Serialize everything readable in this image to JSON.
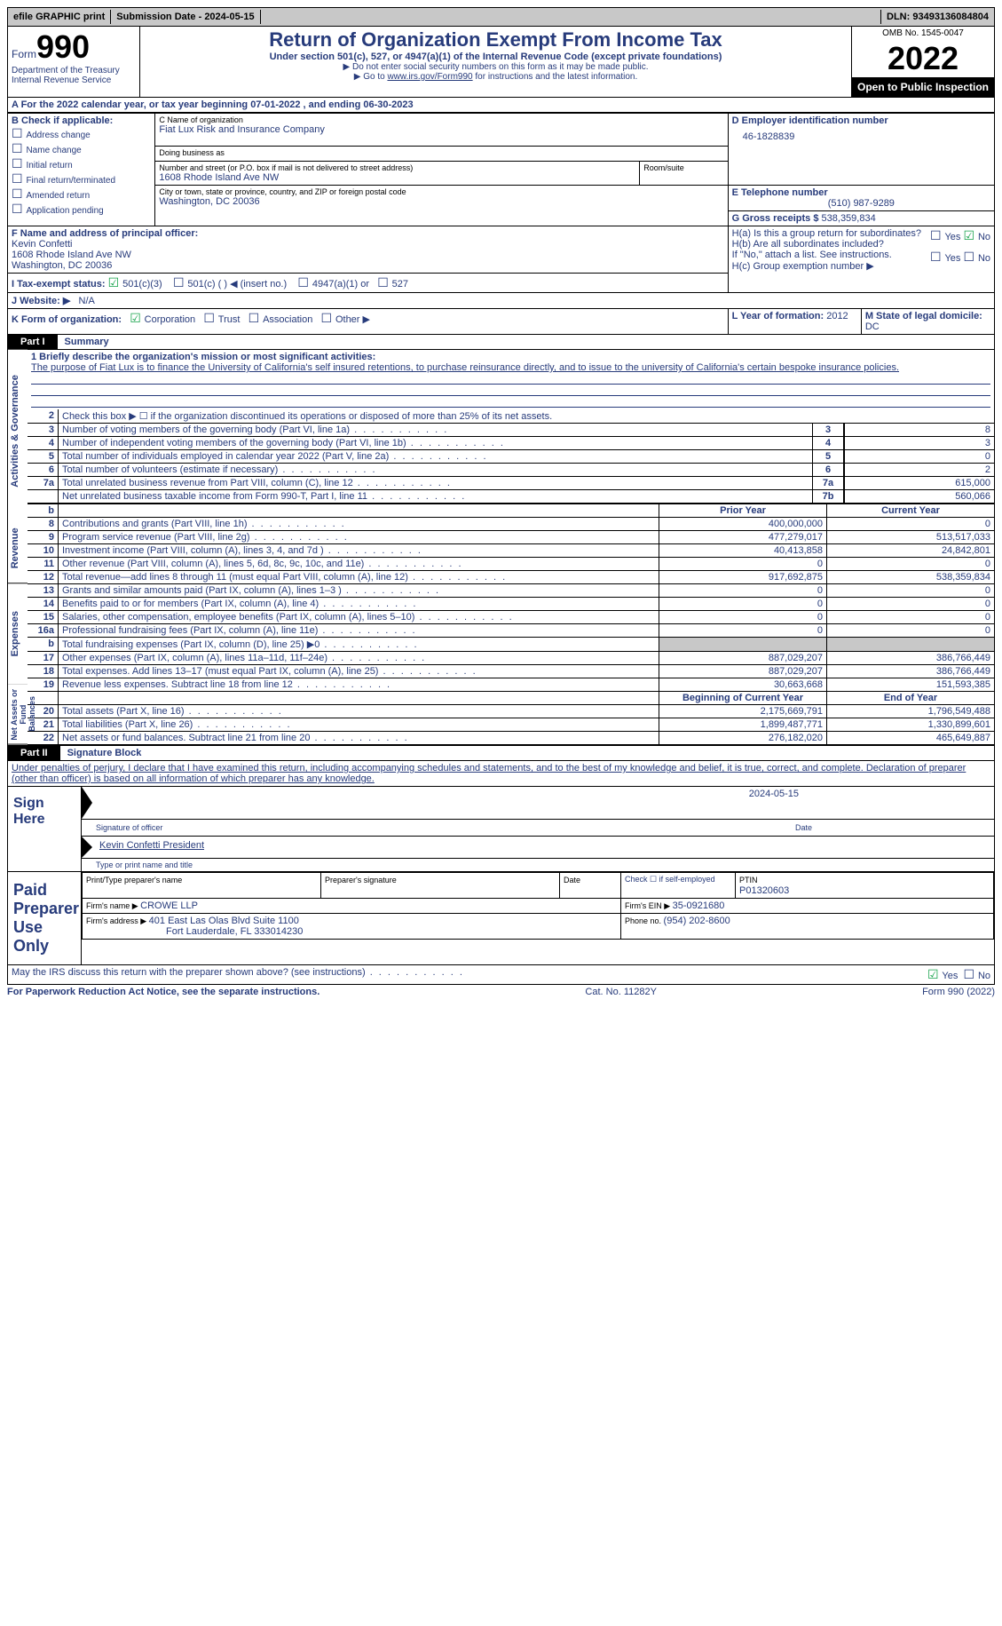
{
  "topbar": {
    "efile": "efile GRAPHIC print",
    "submission": "Submission Date - 2024-05-15",
    "dln": "DLN: 93493136084804"
  },
  "header": {
    "form_label": "Form",
    "form_number": "990",
    "title": "Return of Organization Exempt From Income Tax",
    "subtitle": "Under section 501(c), 527, or 4947(a)(1) of the Internal Revenue Code (except private foundations)",
    "note1": "▶ Do not enter social security numbers on this form as it may be made public.",
    "note2_prefix": "▶ Go to ",
    "note2_link": "www.irs.gov/Form990",
    "note2_suffix": " for instructions and the latest information.",
    "dept": "Department of the Treasury\nInternal Revenue Service",
    "omb": "OMB No. 1545-0047",
    "year": "2022",
    "inspection": "Open to Public Inspection"
  },
  "sectionA": {
    "line": "A For the 2022 calendar year, or tax year beginning 07-01-2022    , and ending 06-30-2023"
  },
  "sectionB": {
    "title": "B Check if applicable:",
    "items": [
      "Address change",
      "Name change",
      "Initial return",
      "Final return/terminated",
      "Amended return",
      "Application pending"
    ]
  },
  "sectionC": {
    "label_name": "C Name of organization",
    "org_name": "Fiat Lux Risk and Insurance Company",
    "dba_label": "Doing business as",
    "street_label": "Number and street (or P.O. box if mail is not delivered to street address)",
    "room_label": "Room/suite",
    "street": "1608 Rhode Island Ave NW",
    "city_label": "City or town, state or province, country, and ZIP or foreign postal code",
    "city": "Washington, DC  20036"
  },
  "sectionD": {
    "label": "D Employer identification number",
    "value": "46-1828839"
  },
  "sectionE": {
    "label": "E Telephone number",
    "value": "(510) 987-9289"
  },
  "sectionG": {
    "label": "G Gross receipts $ ",
    "value": "538,359,834"
  },
  "sectionF": {
    "label": "F  Name and address of principal officer:",
    "name": "Kevin Confetti",
    "addr1": "1608 Rhode Island Ave NW",
    "addr2": "Washington, DC  20036"
  },
  "sectionH": {
    "a": "H(a)  Is this a group return for subordinates?",
    "b": "H(b)  Are all subordinates included?",
    "b_note": "If \"No,\" attach a list. See instructions.",
    "c": "H(c)  Group exemption number ▶"
  },
  "sectionI": {
    "label": "I  Tax-exempt status:",
    "opts": [
      "501(c)(3)",
      "501(c) (  ) ◀ (insert no.)",
      "4947(a)(1) or",
      "527"
    ]
  },
  "sectionJ": {
    "label": "J  Website: ▶",
    "value": "N/A"
  },
  "sectionK": {
    "label": "K Form of organization:",
    "opts": [
      "Corporation",
      "Trust",
      "Association",
      "Other ▶"
    ]
  },
  "sectionL": {
    "label": "L Year of formation: ",
    "value": "2012"
  },
  "sectionM": {
    "label": "M State of legal domicile: ",
    "value": "DC"
  },
  "part1": {
    "part": "Part I",
    "title": "Summary",
    "mission_label": "1  Briefly describe the organization's mission or most significant activities:",
    "mission": "The purpose of Fiat Lux is to finance the University of California's self insured retentions, to purchase reinsurance directly, and to issue to the university of California's certain bespoke insurance policies.",
    "line2": "Check this box ▶ ☐  if the organization discontinued its operations or disposed of more than 25% of its net assets.",
    "rows_gov": [
      {
        "n": "3",
        "desc": "Number of voting members of the governing body (Part VI, line 1a)",
        "box": "3",
        "val": "8"
      },
      {
        "n": "4",
        "desc": "Number of independent voting members of the governing body (Part VI, line 1b)",
        "box": "4",
        "val": "3"
      },
      {
        "n": "5",
        "desc": "Total number of individuals employed in calendar year 2022 (Part V, line 2a)",
        "box": "5",
        "val": "0"
      },
      {
        "n": "6",
        "desc": "Total number of volunteers (estimate if necessary)",
        "box": "6",
        "val": "2"
      },
      {
        "n": "7a",
        "desc": "Total unrelated business revenue from Part VIII, column (C), line 12",
        "box": "7a",
        "val": "615,000"
      },
      {
        "n": "",
        "desc": "Net unrelated business taxable income from Form 990-T, Part I, line 11",
        "box": "7b",
        "val": "560,066"
      }
    ],
    "col_prior": "Prior Year",
    "col_current": "Current Year",
    "rows_rev": [
      {
        "n": "8",
        "desc": "Contributions and grants (Part VIII, line 1h)",
        "p": "400,000,000",
        "c": "0"
      },
      {
        "n": "9",
        "desc": "Program service revenue (Part VIII, line 2g)",
        "p": "477,279,017",
        "c": "513,517,033"
      },
      {
        "n": "10",
        "desc": "Investment income (Part VIII, column (A), lines 3, 4, and 7d )",
        "p": "40,413,858",
        "c": "24,842,801"
      },
      {
        "n": "11",
        "desc": "Other revenue (Part VIII, column (A), lines 5, 6d, 8c, 9c, 10c, and 11e)",
        "p": "0",
        "c": "0"
      },
      {
        "n": "12",
        "desc": "Total revenue—add lines 8 through 11 (must equal Part VIII, column (A), line 12)",
        "p": "917,692,875",
        "c": "538,359,834"
      }
    ],
    "rows_exp": [
      {
        "n": "13",
        "desc": "Grants and similar amounts paid (Part IX, column (A), lines 1–3 )",
        "p": "0",
        "c": "0"
      },
      {
        "n": "14",
        "desc": "Benefits paid to or for members (Part IX, column (A), line 4)",
        "p": "0",
        "c": "0"
      },
      {
        "n": "15",
        "desc": "Salaries, other compensation, employee benefits (Part IX, column (A), lines 5–10)",
        "p": "0",
        "c": "0"
      },
      {
        "n": "16a",
        "desc": "Professional fundraising fees (Part IX, column (A), line 11e)",
        "p": "0",
        "c": "0"
      },
      {
        "n": "b",
        "desc": "Total fundraising expenses (Part IX, column (D), line 25) ▶0",
        "p": "grey",
        "c": "grey"
      },
      {
        "n": "17",
        "desc": "Other expenses (Part IX, column (A), lines 11a–11d, 11f–24e)",
        "p": "887,029,207",
        "c": "386,766,449"
      },
      {
        "n": "18",
        "desc": "Total expenses. Add lines 13–17 (must equal Part IX, column (A), line 25)",
        "p": "887,029,207",
        "c": "386,766,449"
      },
      {
        "n": "19",
        "desc": "Revenue less expenses. Subtract line 18 from line 12",
        "p": "30,663,668",
        "c": "151,593,385"
      }
    ],
    "col_begin": "Beginning of Current Year",
    "col_end": "End of Year",
    "rows_net": [
      {
        "n": "20",
        "desc": "Total assets (Part X, line 16)",
        "p": "2,175,669,791",
        "c": "1,796,549,488"
      },
      {
        "n": "21",
        "desc": "Total liabilities (Part X, line 26)",
        "p": "1,899,487,771",
        "c": "1,330,899,601"
      },
      {
        "n": "22",
        "desc": "Net assets or fund balances. Subtract line 21 from line 20",
        "p": "276,182,020",
        "c": "465,649,887"
      }
    ]
  },
  "part2": {
    "part": "Part II",
    "title": "Signature Block",
    "decl": "Under penalties of perjury, I declare that I have examined this return, including accompanying schedules and statements, and to the best of my knowledge and belief, it is true, correct, and complete. Declaration of preparer (other than officer) is based on all information of which preparer has any knowledge.",
    "sign_here": "Sign Here",
    "sig_officer": "Signature of officer",
    "sig_date": "2024-05-15",
    "officer_name": "Kevin Confetti  President",
    "type_name": "Type or print name and title",
    "paid_label": "Paid Preparer Use Only",
    "prep_name_label": "Print/Type preparer's name",
    "prep_sig_label": "Preparer's signature",
    "date_label": "Date",
    "check_self": "Check ☐ if self-employed",
    "ptin_label": "PTIN",
    "ptin": "P01320603",
    "firm_name_label": "Firm's name    ▶ ",
    "firm_name": "CROWE LLP",
    "firm_ein_label": "Firm's EIN ▶ ",
    "firm_ein": "35-0921680",
    "firm_addr_label": "Firm's address ▶ ",
    "firm_addr1": "401 East Las Olas Blvd Suite 1100",
    "firm_addr2": "Fort Lauderdale, FL  333014230",
    "phone_label": "Phone no. ",
    "phone": "(954) 202-8600",
    "discuss": "May the IRS discuss this return with the preparer shown above? (see instructions)",
    "yes": "Yes",
    "no": "No"
  },
  "footer": {
    "left": "For Paperwork Reduction Act Notice, see the separate instructions.",
    "mid": "Cat. No. 11282Y",
    "right": "Form 990 (2022)"
  }
}
